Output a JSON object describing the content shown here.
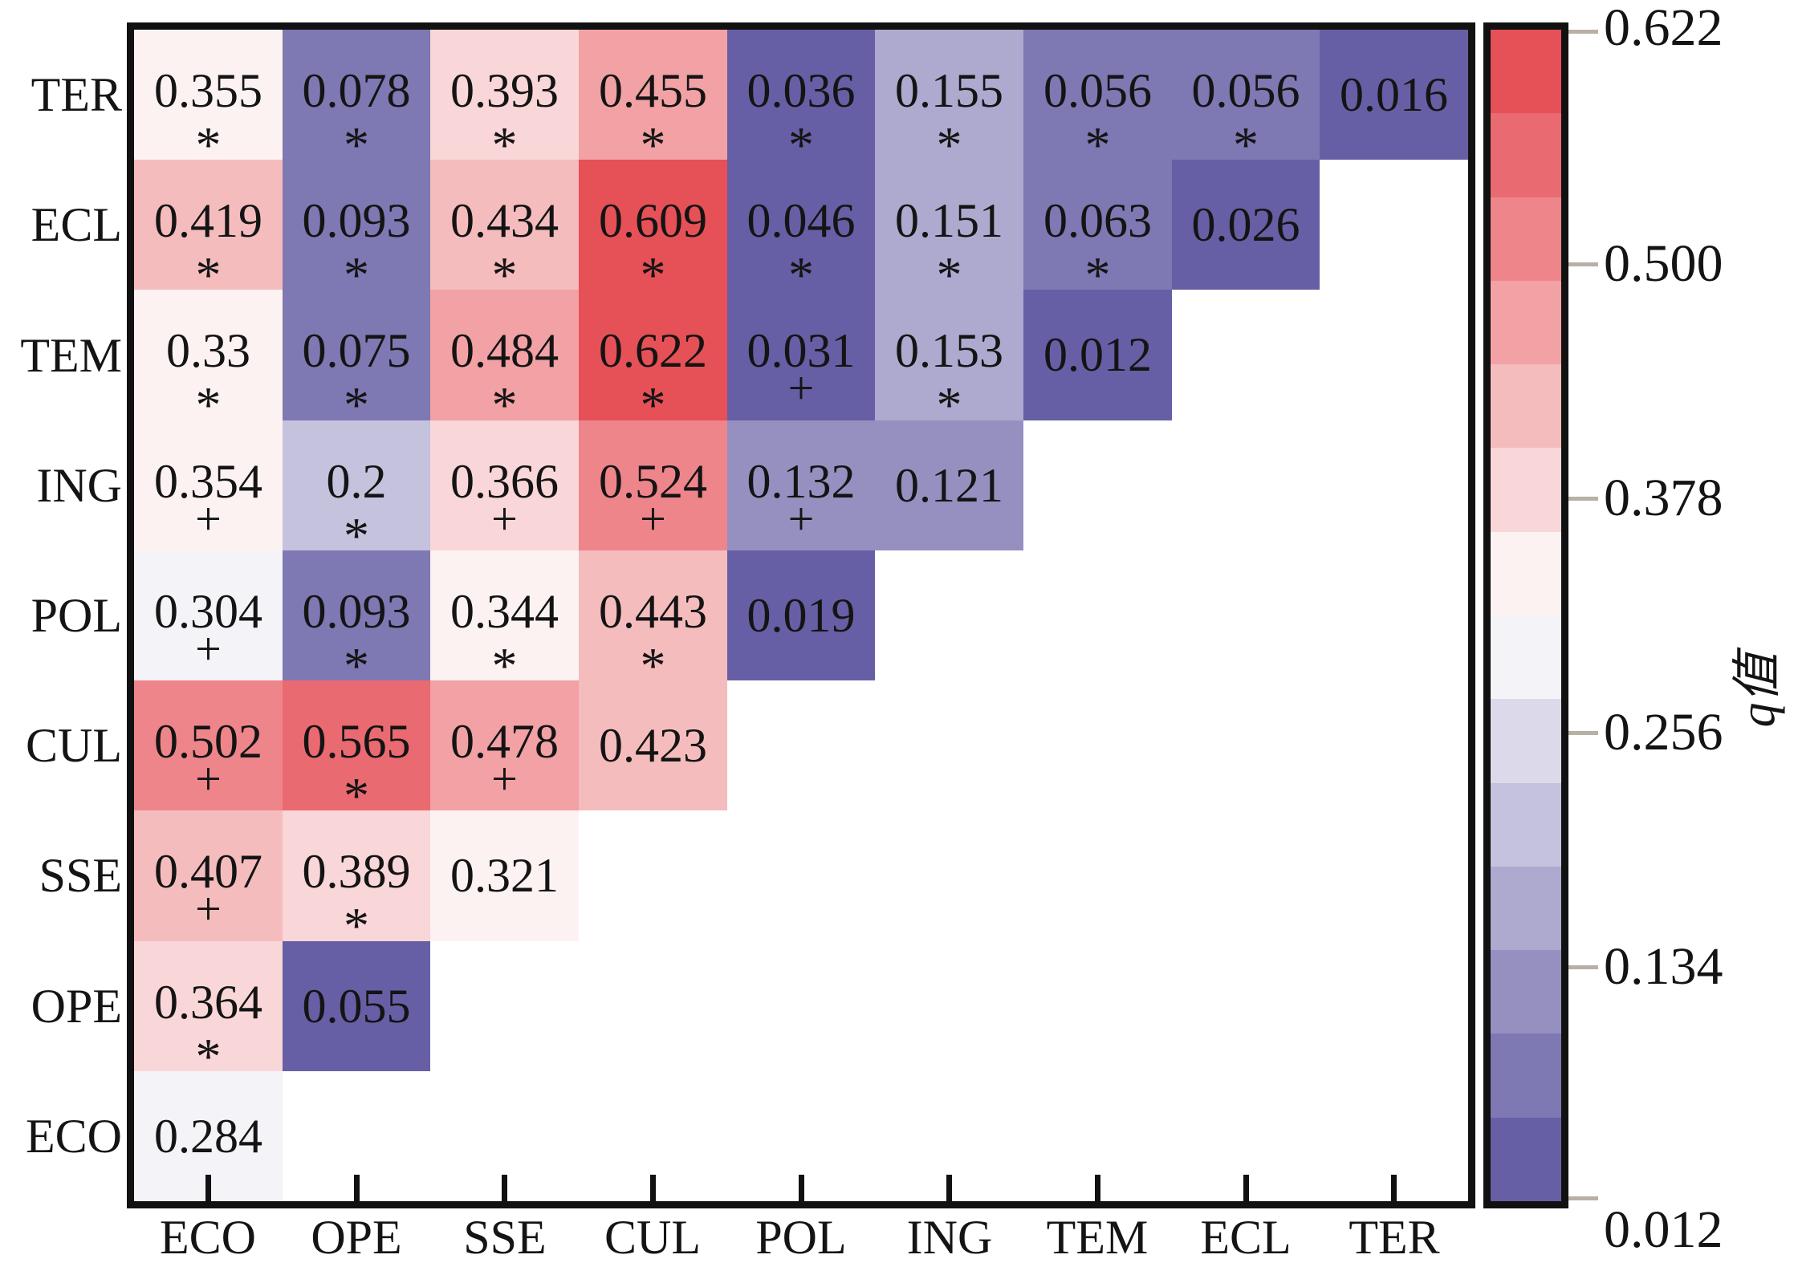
{
  "chart_data": {
    "type": "heatmap",
    "title": "",
    "xlabel": "",
    "ylabel": "",
    "grid": false,
    "legend_position": "right-colorbar",
    "x_categories": [
      "ECO",
      "OPE",
      "SSE",
      "CUL",
      "POL",
      "ING",
      "TEM",
      "ECL",
      "TER"
    ],
    "y_categories": [
      "TER",
      "ECL",
      "TEM",
      "ING",
      "POL",
      "CUL",
      "SSE",
      "OPE",
      "ECO"
    ],
    "marker_glyphs": {
      "significant": "*",
      "weak": "+"
    },
    "colorbar": {
      "label": "q值",
      "tick_labels": [
        "0.622",
        "0.500",
        "0.378",
        "0.256",
        "0.134",
        "0.012"
      ],
      "tick_values": [
        0.622,
        0.5,
        0.378,
        0.256,
        0.134,
        0.012
      ],
      "min": 0.012,
      "max": 0.622,
      "mid": 0.317,
      "low_color": "#5B539E",
      "mid_color": "#FFFFFF",
      "high_color": "#E4424A",
      "tick_color": "#B9B0A5",
      "bands": 14
    },
    "rows": [
      {
        "y": "TER",
        "cells": [
          {
            "x": "ECO",
            "label": "0.355",
            "value": 0.355,
            "marker": "*"
          },
          {
            "x": "OPE",
            "label": "0.078",
            "value": 0.078,
            "marker": "*"
          },
          {
            "x": "SSE",
            "label": "0.393",
            "value": 0.393,
            "marker": "*"
          },
          {
            "x": "CUL",
            "label": "0.455",
            "value": 0.455,
            "marker": "*"
          },
          {
            "x": "POL",
            "label": "0.036",
            "value": 0.036,
            "marker": "*"
          },
          {
            "x": "ING",
            "label": "0.155",
            "value": 0.155,
            "marker": "*"
          },
          {
            "x": "TEM",
            "label": "0.056",
            "value": 0.056,
            "marker": "*"
          },
          {
            "x": "ECL",
            "label": "0.056",
            "value": 0.056,
            "marker": "*"
          },
          {
            "x": "TER",
            "label": "0.016",
            "value": 0.016,
            "marker": ""
          }
        ]
      },
      {
        "y": "ECL",
        "cells": [
          {
            "x": "ECO",
            "label": "0.419",
            "value": 0.419,
            "marker": "*"
          },
          {
            "x": "OPE",
            "label": "0.093",
            "value": 0.093,
            "marker": "*"
          },
          {
            "x": "SSE",
            "label": "0.434",
            "value": 0.434,
            "marker": "*"
          },
          {
            "x": "CUL",
            "label": "0.609",
            "value": 0.609,
            "marker": "*"
          },
          {
            "x": "POL",
            "label": "0.046",
            "value": 0.046,
            "marker": "*"
          },
          {
            "x": "ING",
            "label": "0.151",
            "value": 0.151,
            "marker": "*"
          },
          {
            "x": "TEM",
            "label": "0.063",
            "value": 0.063,
            "marker": "*"
          },
          {
            "x": "ECL",
            "label": "0.026",
            "value": 0.026,
            "marker": ""
          }
        ]
      },
      {
        "y": "TEM",
        "cells": [
          {
            "x": "ECO",
            "label": "0.33",
            "value": 0.33,
            "marker": "*"
          },
          {
            "x": "OPE",
            "label": "0.075",
            "value": 0.075,
            "marker": "*"
          },
          {
            "x": "SSE",
            "label": "0.484",
            "value": 0.484,
            "marker": "*"
          },
          {
            "x": "CUL",
            "label": "0.622",
            "value": 0.622,
            "marker": "*"
          },
          {
            "x": "POL",
            "label": "0.031",
            "value": 0.031,
            "marker": "+"
          },
          {
            "x": "ING",
            "label": "0.153",
            "value": 0.153,
            "marker": "*"
          },
          {
            "x": "TEM",
            "label": "0.012",
            "value": 0.012,
            "marker": ""
          }
        ]
      },
      {
        "y": "ING",
        "cells": [
          {
            "x": "ECO",
            "label": "0.354",
            "value": 0.354,
            "marker": "+"
          },
          {
            "x": "OPE",
            "label": "0.2",
            "value": 0.2,
            "marker": "*"
          },
          {
            "x": "SSE",
            "label": "0.366",
            "value": 0.366,
            "marker": "+"
          },
          {
            "x": "CUL",
            "label": "0.524",
            "value": 0.524,
            "marker": "+"
          },
          {
            "x": "POL",
            "label": "0.132",
            "value": 0.132,
            "marker": "+"
          },
          {
            "x": "ING",
            "label": "0.121",
            "value": 0.121,
            "marker": ""
          }
        ]
      },
      {
        "y": "POL",
        "cells": [
          {
            "x": "ECO",
            "label": "0.304",
            "value": 0.304,
            "marker": "+"
          },
          {
            "x": "OPE",
            "label": "0.093",
            "value": 0.093,
            "marker": "*"
          },
          {
            "x": "SSE",
            "label": "0.344",
            "value": 0.344,
            "marker": "*"
          },
          {
            "x": "CUL",
            "label": "0.443",
            "value": 0.443,
            "marker": "*"
          },
          {
            "x": "POL",
            "label": "0.019",
            "value": 0.019,
            "marker": ""
          }
        ]
      },
      {
        "y": "CUL",
        "cells": [
          {
            "x": "ECO",
            "label": "0.502",
            "value": 0.502,
            "marker": "+"
          },
          {
            "x": "OPE",
            "label": "0.565",
            "value": 0.565,
            "marker": "*"
          },
          {
            "x": "SSE",
            "label": "0.478",
            "value": 0.478,
            "marker": "+"
          },
          {
            "x": "CUL",
            "label": "0.423",
            "value": 0.423,
            "marker": ""
          }
        ]
      },
      {
        "y": "SSE",
        "cells": [
          {
            "x": "ECO",
            "label": "0.407",
            "value": 0.407,
            "marker": "+"
          },
          {
            "x": "OPE",
            "label": "0.389",
            "value": 0.389,
            "marker": "*"
          },
          {
            "x": "SSE",
            "label": "0.321",
            "value": 0.321,
            "marker": ""
          }
        ]
      },
      {
        "y": "OPE",
        "cells": [
          {
            "x": "ECO",
            "label": "0.364",
            "value": 0.364,
            "marker": "*"
          },
          {
            "x": "OPE",
            "label": "0.055",
            "value": 0.055,
            "marker": ""
          }
        ]
      },
      {
        "y": "ECO",
        "cells": [
          {
            "x": "ECO",
            "label": "0.284",
            "value": 0.284,
            "marker": ""
          }
        ]
      }
    ]
  }
}
